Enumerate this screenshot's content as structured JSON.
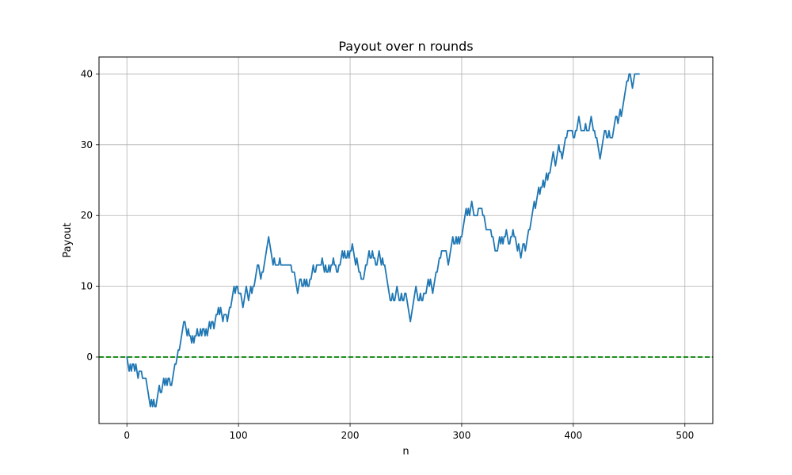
{
  "chart_data": {
    "type": "line",
    "title": "Payout over n rounds",
    "xlabel": "n",
    "ylabel": "Payout",
    "xlim": [
      -25,
      525
    ],
    "ylim": [
      -9.4,
      42.4
    ],
    "xticks": [
      0,
      100,
      200,
      300,
      400,
      500
    ],
    "yticks": [
      0,
      10,
      20,
      30,
      40
    ],
    "grid": true,
    "series": [
      {
        "values": [
          0,
          -1,
          -2,
          -1,
          -2,
          -1,
          -1,
          -2,
          -1,
          -2,
          -3,
          -2,
          -2,
          -2,
          -3,
          -3,
          -3,
          -3,
          -4,
          -5,
          -6,
          -7,
          -6,
          -7,
          -6,
          -7,
          -7,
          -6,
          -5,
          -4,
          -5,
          -5,
          -4,
          -3,
          -4,
          -3,
          -4,
          -3,
          -3,
          -4,
          -4,
          -3,
          -2,
          -1,
          -1,
          0,
          1,
          1,
          2,
          3,
          4,
          5,
          5,
          4,
          3,
          4,
          3,
          3,
          2,
          3,
          2,
          3,
          3,
          4,
          3,
          3,
          4,
          3,
          4,
          4,
          3,
          4,
          3,
          4,
          5,
          4,
          5,
          5,
          4,
          5,
          6,
          6,
          7,
          6,
          7,
          6,
          5,
          6,
          6,
          6,
          5,
          6,
          7,
          7,
          8,
          9,
          10,
          9,
          10,
          10,
          9,
          9,
          9,
          8,
          7,
          8,
          9,
          10,
          9,
          8,
          9,
          10,
          9,
          10,
          10,
          11,
          12,
          13,
          13,
          12,
          11,
          12,
          12,
          13,
          14,
          15,
          16,
          17,
          16,
          15,
          14,
          13,
          14,
          13,
          13,
          13,
          13,
          14,
          13,
          13,
          13,
          13,
          13,
          13,
          13,
          13,
          13,
          13,
          12,
          12,
          12,
          11,
          10,
          9,
          10,
          11,
          11,
          10,
          10,
          11,
          10,
          11,
          10,
          10,
          11,
          11,
          12,
          13,
          12,
          12,
          13,
          13,
          13,
          13,
          13,
          14,
          13,
          12,
          13,
          12,
          12,
          13,
          12,
          13,
          13,
          14,
          13,
          13,
          12,
          12,
          13,
          13,
          14,
          15,
          14,
          15,
          14,
          14,
          15,
          14,
          15,
          15,
          16,
          15,
          14,
          13,
          14,
          13,
          12,
          12,
          11,
          11,
          11,
          12,
          13,
          13,
          14,
          15,
          14,
          14,
          15,
          14,
          14,
          13,
          13,
          14,
          15,
          14,
          13,
          14,
          13,
          13,
          12,
          11,
          10,
          9,
          8,
          8,
          9,
          8,
          8,
          9,
          10,
          9,
          8,
          8,
          9,
          8,
          8,
          9,
          9,
          8,
          7,
          6,
          5,
          6,
          7,
          8,
          9,
          10,
          9,
          8,
          8,
          9,
          8,
          8,
          9,
          9,
          9,
          10,
          11,
          10,
          11,
          10,
          9,
          10,
          11,
          12,
          12,
          13,
          14,
          14,
          15,
          15,
          15,
          15,
          15,
          14,
          13,
          14,
          15,
          16,
          17,
          16,
          16,
          17,
          16,
          17,
          16,
          17,
          17,
          18,
          19,
          20,
          21,
          20,
          21,
          20,
          21,
          22,
          21,
          20,
          20,
          20,
          20,
          21,
          21,
          21,
          21,
          20,
          20,
          19,
          18,
          18,
          18,
          18,
          18,
          17,
          17,
          16,
          15,
          15,
          15,
          16,
          17,
          16,
          17,
          16,
          17,
          17,
          18,
          17,
          16,
          16,
          17,
          17,
          18,
          17,
          17,
          16,
          15,
          16,
          15,
          14,
          15,
          16,
          16,
          15,
          16,
          17,
          18,
          18,
          19,
          20,
          21,
          22,
          21,
          22,
          23,
          24,
          23,
          24,
          24,
          25,
          24,
          25,
          26,
          25,
          26,
          26,
          27,
          28,
          29,
          28,
          27,
          28,
          29,
          30,
          29,
          29,
          28,
          29,
          30,
          31,
          31,
          32,
          32,
          32,
          32,
          32,
          31,
          31,
          32,
          32,
          33,
          34,
          33,
          32,
          32,
          32,
          32,
          33,
          32,
          32,
          32,
          33,
          34,
          33,
          32,
          32,
          31,
          31,
          30,
          29,
          28,
          29,
          30,
          31,
          32,
          32,
          31,
          31,
          32,
          31,
          31,
          31,
          32,
          33,
          34,
          34,
          33,
          34,
          35,
          34,
          35,
          36,
          37,
          38,
          39,
          39,
          40,
          40,
          39,
          38,
          39,
          40,
          40,
          40,
          40,
          40
        ]
      }
    ],
    "reference_line": {
      "y": 0,
      "style": "dashed",
      "color": "#008000"
    },
    "colors": {
      "series": "#1f77b4",
      "grid": "#b0b0b0",
      "axes": "#000000"
    }
  }
}
